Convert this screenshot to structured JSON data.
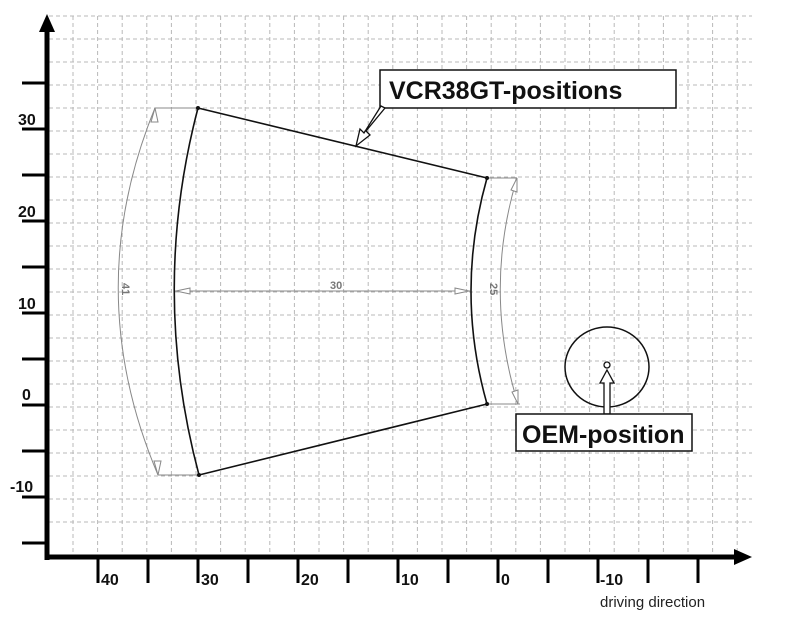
{
  "diagram": {
    "callouts": {
      "vcr": "VCR38GT-positions",
      "oem": "OEM-position"
    },
    "x_axis": {
      "label": "driving direction",
      "ticks": [
        "40",
        "30",
        "20",
        "10",
        "0",
        "-10"
      ]
    },
    "y_axis": {
      "ticks": [
        "30",
        "20",
        "10",
        "0",
        "-10"
      ]
    },
    "dimensions": {
      "left_arc": "41",
      "width": "30",
      "right_arc": "25"
    },
    "colors": {
      "outline": "#111111",
      "grid": "#b0b0b0",
      "dimension": "#888888"
    }
  }
}
